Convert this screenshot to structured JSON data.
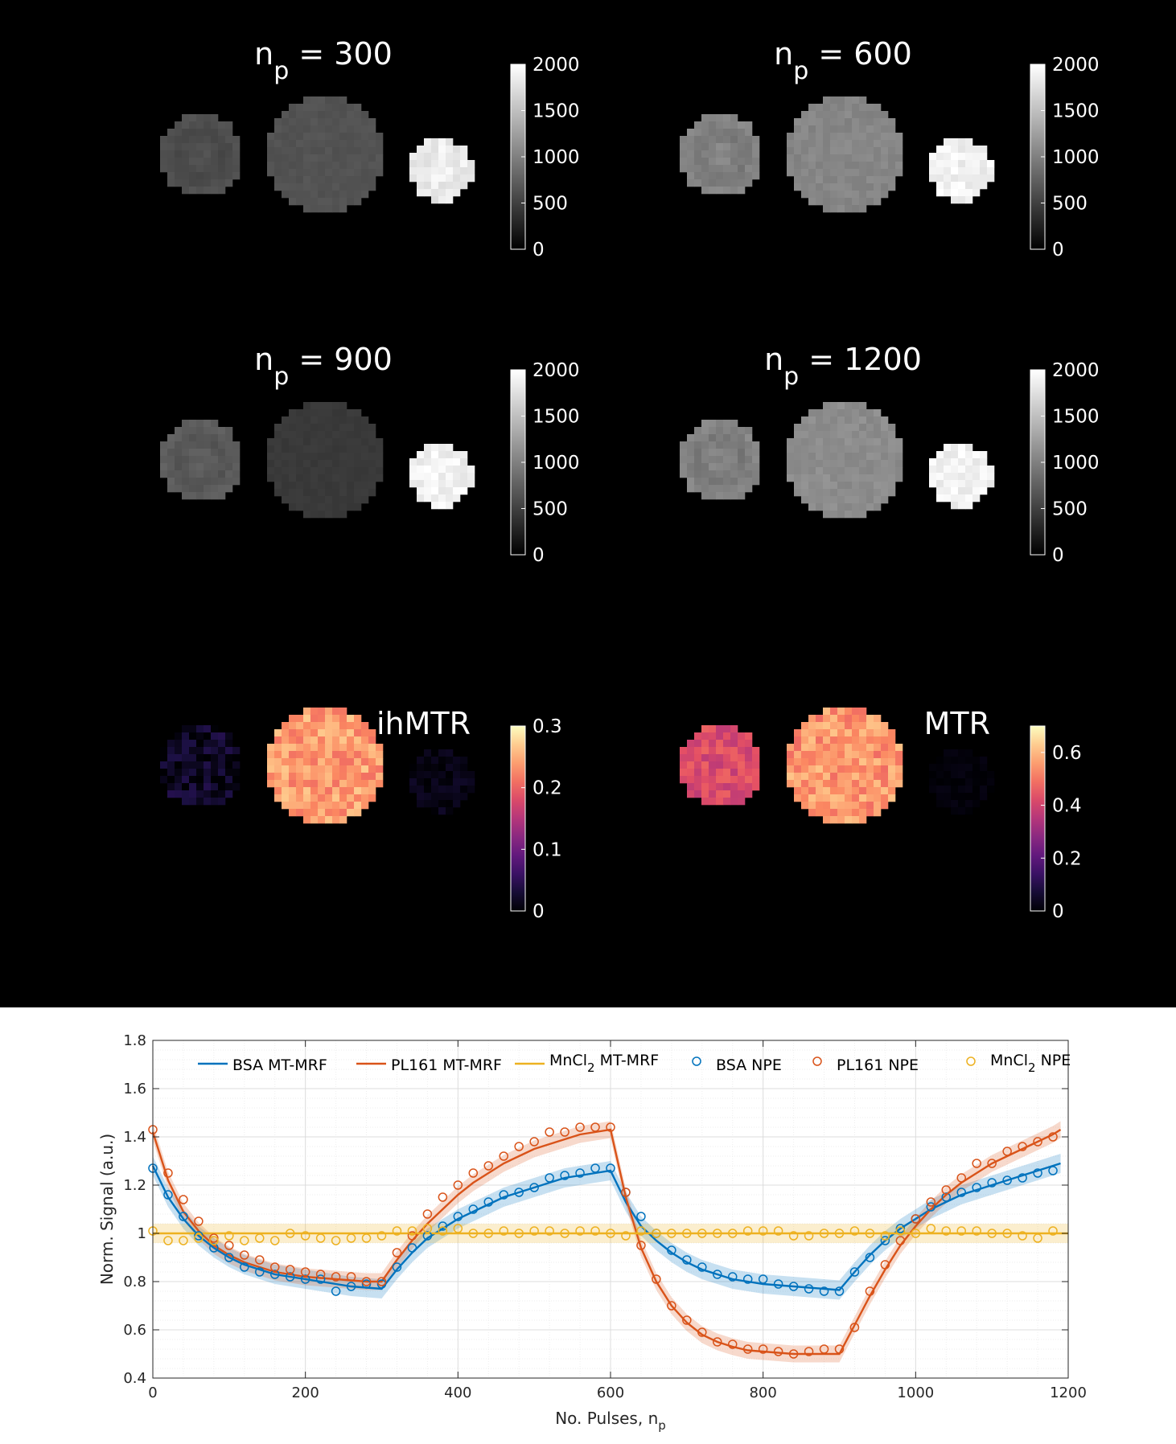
{
  "maps": {
    "panels": [
      {
        "title_main": "n",
        "title_sub": "p",
        "title_rest": " = 300",
        "colormap": "gray",
        "colorbar_ticks": [
          "0",
          "500",
          "1000",
          "1500",
          "2000"
        ],
        "disc_intensity": [
          600,
          650,
          1850
        ]
      },
      {
        "title_main": "n",
        "title_sub": "p",
        "title_rest": " = 600",
        "colormap": "gray",
        "colorbar_ticks": [
          "0",
          "500",
          "1000",
          "1500",
          "2000"
        ],
        "disc_intensity": [
          1000,
          1050,
          1900
        ]
      },
      {
        "title_main": "n",
        "title_sub": "p",
        "title_rest": " = 900",
        "colormap": "gray",
        "colorbar_ticks": [
          "0",
          "500",
          "1000",
          "1500",
          "2000"
        ],
        "disc_intensity": [
          700,
          450,
          1900
        ]
      },
      {
        "title_main": "n",
        "title_sub": "p",
        "title_rest": " = 1200",
        "colormap": "gray",
        "colorbar_ticks": [
          "0",
          "500",
          "1000",
          "1500",
          "2000"
        ],
        "disc_intensity": [
          1000,
          1100,
          1900
        ]
      },
      {
        "title_main": "ihMTR",
        "title_sub": "",
        "title_rest": "",
        "colormap": "magma",
        "colorbar_ticks": [
          "0",
          "0.1",
          "0.2",
          "0.3"
        ],
        "colorbar_range": [
          0,
          0.3
        ],
        "disc_intensity": [
          0.02,
          0.24,
          0.01
        ]
      },
      {
        "title_main": "MTR",
        "title_sub": "",
        "title_rest": "",
        "colormap": "magma",
        "colorbar_ticks": [
          "0",
          "0.2",
          "0.4",
          "0.6"
        ],
        "colorbar_range": [
          0,
          0.7
        ],
        "disc_intensity": [
          0.42,
          0.55,
          0.01
        ]
      }
    ]
  },
  "chart_data": {
    "type": "line",
    "xlabel_main": "No. Pulses, n",
    "xlabel_sub": "p",
    "ylabel": "Norm. Signal (a.u.)",
    "xlim": [
      0,
      1200
    ],
    "ylim": [
      0.4,
      1.8
    ],
    "xticks": [
      0,
      200,
      400,
      600,
      800,
      1000,
      1200
    ],
    "yticks": [
      0.4,
      0.6,
      0.8,
      1,
      1.2,
      1.4,
      1.6,
      1.8
    ],
    "ytick_labels": [
      "0.4",
      "0.6",
      "0.8",
      "1",
      "1.2",
      "1.4",
      "1.6",
      "1.8"
    ],
    "grid": true,
    "legend_position": "top",
    "legend": [
      {
        "label": "BSA MT-MRF",
        "sub": "",
        "rest": "",
        "kind": "line",
        "color": "#0072BD"
      },
      {
        "label": "PL161 MT-MRF",
        "sub": "",
        "rest": "",
        "kind": "line",
        "color": "#D95319"
      },
      {
        "label": "MnCl",
        "sub": "2",
        "rest": " MT-MRF",
        "kind": "line",
        "color": "#EDB120"
      },
      {
        "label": "BSA NPE",
        "sub": "",
        "rest": "",
        "kind": "marker",
        "color": "#0072BD"
      },
      {
        "label": "PL161 NPE",
        "sub": "",
        "rest": "",
        "kind": "marker",
        "color": "#D95319"
      },
      {
        "label": "MnCl",
        "sub": "2",
        "rest": " NPE",
        "kind": "marker",
        "color": "#EDB120"
      }
    ],
    "fit_curves": [
      {
        "name": "BSA MT-MRF",
        "color": "#0072BD",
        "x": [
          0,
          20,
          40,
          60,
          80,
          100,
          120,
          140,
          160,
          180,
          200,
          220,
          240,
          260,
          280,
          300,
          320,
          340,
          360,
          380,
          400,
          420,
          440,
          460,
          480,
          500,
          520,
          540,
          560,
          580,
          600,
          620,
          640,
          660,
          680,
          700,
          720,
          740,
          760,
          780,
          800,
          820,
          840,
          860,
          880,
          900,
          920,
          940,
          960,
          980,
          1000,
          1020,
          1040,
          1060,
          1080,
          1100,
          1120,
          1140,
          1160,
          1180,
          1190
        ],
        "y": [
          1.28,
          1.15,
          1.06,
          0.99,
          0.94,
          0.9,
          0.87,
          0.85,
          0.83,
          0.82,
          0.81,
          0.8,
          0.79,
          0.78,
          0.775,
          0.77,
          0.85,
          0.92,
          0.98,
          1.02,
          1.06,
          1.09,
          1.12,
          1.15,
          1.17,
          1.19,
          1.21,
          1.23,
          1.24,
          1.25,
          1.26,
          1.13,
          1.03,
          0.97,
          0.92,
          0.88,
          0.85,
          0.83,
          0.81,
          0.8,
          0.79,
          0.785,
          0.78,
          0.775,
          0.77,
          0.765,
          0.84,
          0.91,
          0.97,
          1.02,
          1.06,
          1.1,
          1.13,
          1.16,
          1.18,
          1.2,
          1.22,
          1.24,
          1.26,
          1.28,
          1.29
        ],
        "band": 0.04
      },
      {
        "name": "PL161 MT-MRF",
        "color": "#D95319",
        "x": [
          0,
          20,
          40,
          60,
          80,
          100,
          120,
          140,
          160,
          180,
          200,
          220,
          240,
          260,
          280,
          300,
          320,
          340,
          360,
          380,
          400,
          420,
          440,
          460,
          480,
          500,
          520,
          540,
          560,
          580,
          600,
          620,
          640,
          660,
          680,
          700,
          720,
          740,
          760,
          780,
          800,
          820,
          840,
          860,
          880,
          900,
          920,
          940,
          960,
          980,
          1000,
          1020,
          1040,
          1060,
          1080,
          1100,
          1120,
          1140,
          1160,
          1180,
          1190
        ],
        "y": [
          1.42,
          1.22,
          1.09,
          1.01,
          0.95,
          0.91,
          0.88,
          0.86,
          0.84,
          0.83,
          0.82,
          0.815,
          0.81,
          0.805,
          0.8,
          0.8,
          0.89,
          0.97,
          1.04,
          1.1,
          1.16,
          1.21,
          1.25,
          1.29,
          1.32,
          1.35,
          1.37,
          1.39,
          1.41,
          1.42,
          1.43,
          1.15,
          0.94,
          0.8,
          0.7,
          0.63,
          0.58,
          0.55,
          0.53,
          0.515,
          0.51,
          0.505,
          0.5,
          0.5,
          0.5,
          0.5,
          0.62,
          0.74,
          0.85,
          0.95,
          1.03,
          1.1,
          1.16,
          1.21,
          1.25,
          1.29,
          1.32,
          1.35,
          1.38,
          1.41,
          1.43
        ],
        "band": 0.035
      },
      {
        "name": "MnCl2 MT-MRF",
        "color": "#EDB120",
        "x": [
          0,
          600,
          1200
        ],
        "y": [
          1.0,
          1.0,
          1.0
        ],
        "band": 0.04
      }
    ],
    "npe_points": [
      {
        "name": "BSA NPE",
        "color": "#0072BD",
        "x": [
          0,
          20,
          40,
          60,
          80,
          100,
          120,
          140,
          160,
          180,
          200,
          220,
          240,
          260,
          280,
          300,
          320,
          340,
          360,
          380,
          400,
          420,
          440,
          460,
          480,
          500,
          520,
          540,
          560,
          580,
          600,
          620,
          640,
          660,
          680,
          700,
          720,
          740,
          760,
          780,
          800,
          820,
          840,
          860,
          880,
          900,
          920,
          940,
          960,
          980,
          1000,
          1020,
          1040,
          1060,
          1080,
          1100,
          1120,
          1140,
          1160,
          1180
        ],
        "y": [
          1.27,
          1.16,
          1.07,
          0.99,
          0.94,
          0.9,
          0.86,
          0.84,
          0.83,
          0.82,
          0.81,
          0.81,
          0.76,
          0.78,
          0.79,
          0.79,
          0.86,
          0.94,
          0.99,
          1.03,
          1.07,
          1.1,
          1.13,
          1.16,
          1.17,
          1.19,
          1.23,
          1.24,
          1.25,
          1.27,
          1.27,
          1.17,
          1.07,
          1.0,
          0.93,
          0.89,
          0.86,
          0.83,
          0.82,
          0.81,
          0.81,
          0.79,
          0.78,
          0.77,
          0.76,
          0.76,
          0.84,
          0.9,
          0.97,
          1.02,
          1.06,
          1.11,
          1.15,
          1.17,
          1.19,
          1.21,
          1.22,
          1.23,
          1.25,
          1.26
        ]
      },
      {
        "name": "PL161 NPE",
        "color": "#D95319",
        "x": [
          0,
          20,
          40,
          60,
          80,
          100,
          120,
          140,
          160,
          180,
          200,
          220,
          240,
          260,
          280,
          300,
          320,
          340,
          360,
          380,
          400,
          420,
          440,
          460,
          480,
          500,
          520,
          540,
          560,
          580,
          600,
          620,
          640,
          660,
          680,
          700,
          720,
          740,
          760,
          780,
          800,
          820,
          840,
          860,
          880,
          900,
          920,
          940,
          960,
          980,
          1000,
          1020,
          1040,
          1060,
          1080,
          1100,
          1120,
          1140,
          1160,
          1180
        ],
        "y": [
          1.43,
          1.25,
          1.14,
          1.05,
          0.98,
          0.95,
          0.91,
          0.89,
          0.86,
          0.85,
          0.84,
          0.83,
          0.82,
          0.82,
          0.8,
          0.8,
          0.92,
          0.99,
          1.08,
          1.15,
          1.2,
          1.25,
          1.28,
          1.32,
          1.36,
          1.38,
          1.42,
          1.42,
          1.44,
          1.44,
          1.44,
          1.17,
          0.95,
          0.81,
          0.7,
          0.64,
          0.59,
          0.55,
          0.54,
          0.52,
          0.52,
          0.51,
          0.5,
          0.51,
          0.52,
          0.52,
          0.61,
          0.76,
          0.87,
          0.97,
          1.06,
          1.13,
          1.18,
          1.23,
          1.29,
          1.29,
          1.34,
          1.36,
          1.38,
          1.4
        ]
      },
      {
        "name": "MnCl2 NPE",
        "color": "#EDB120",
        "x": [
          0,
          20,
          40,
          60,
          80,
          100,
          120,
          140,
          160,
          180,
          200,
          220,
          240,
          260,
          280,
          300,
          320,
          340,
          360,
          380,
          400,
          420,
          440,
          460,
          480,
          500,
          520,
          540,
          560,
          580,
          600,
          620,
          640,
          660,
          680,
          700,
          720,
          740,
          760,
          780,
          800,
          820,
          840,
          860,
          880,
          900,
          920,
          940,
          960,
          980,
          1000,
          1020,
          1040,
          1060,
          1080,
          1100,
          1120,
          1140,
          1160,
          1180
        ],
        "y": [
          1.01,
          0.97,
          0.97,
          0.98,
          0.97,
          0.99,
          0.97,
          0.98,
          0.97,
          1.0,
          0.99,
          0.98,
          0.97,
          0.98,
          0.98,
          0.99,
          1.01,
          1.01,
          1.02,
          1.01,
          1.02,
          1.0,
          1.0,
          1.01,
          1.0,
          1.01,
          1.01,
          1.0,
          1.01,
          1.01,
          1.0,
          0.99,
          1.01,
          1.0,
          1.0,
          1.0,
          1.0,
          1.0,
          1.0,
          1.01,
          1.01,
          1.01,
          0.99,
          0.99,
          1.0,
          1.0,
          1.01,
          1.0,
          0.99,
          1.01,
          1.0,
          1.02,
          1.01,
          1.01,
          1.01,
          1.0,
          1.0,
          0.99,
          0.98,
          1.01
        ]
      }
    ]
  }
}
